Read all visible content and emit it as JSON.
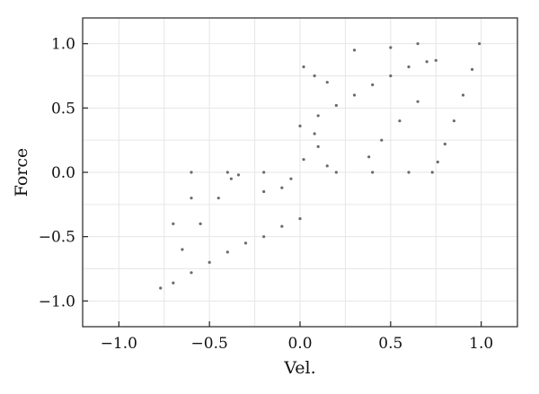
{
  "chart_data": {
    "type": "scatter",
    "title": "",
    "xlabel": "Vel.",
    "ylabel": "Force",
    "xlim": [
      -1.2,
      1.2
    ],
    "ylim": [
      -1.2,
      1.2
    ],
    "xticks": [
      -1.0,
      -0.5,
      0.0,
      0.5,
      1.0
    ],
    "yticks": [
      -1.0,
      -0.5,
      0.0,
      0.5,
      1.0
    ],
    "xtick_labels": [
      "−1.0",
      "−0.5",
      "0.0",
      "0.5",
      "1.0"
    ],
    "ytick_labels": [
      "−1.0",
      "−0.5",
      "0.0",
      "0.5",
      "1.0"
    ],
    "grid": true,
    "legend": "none",
    "marker_color": "#6b6b6b",
    "series": [
      {
        "values": [
          [
            -0.77,
            -0.9
          ],
          [
            -0.7,
            -0.86
          ],
          [
            -0.6,
            -0.78
          ],
          [
            -0.5,
            -0.7
          ],
          [
            -0.4,
            -0.62
          ],
          [
            -0.3,
            -0.55
          ],
          [
            -0.2,
            -0.5
          ],
          [
            -0.1,
            -0.42
          ],
          [
            0.0,
            -0.36
          ],
          [
            0.0,
            0.36
          ],
          [
            0.1,
            0.44
          ],
          [
            0.2,
            0.52
          ],
          [
            0.3,
            0.6
          ],
          [
            0.4,
            0.68
          ],
          [
            0.5,
            0.75
          ],
          [
            0.6,
            0.82
          ],
          [
            0.7,
            0.86
          ],
          [
            0.75,
            0.87
          ],
          [
            -0.6,
            0.0
          ],
          [
            -0.4,
            0.0
          ],
          [
            -0.2,
            0.0
          ],
          [
            0.2,
            0.0
          ],
          [
            0.4,
            0.0
          ],
          [
            0.6,
            0.0
          ],
          [
            0.73,
            0.0
          ],
          [
            0.99,
            1.0
          ],
          [
            0.95,
            0.8
          ],
          [
            0.9,
            0.6
          ],
          [
            0.85,
            0.4
          ],
          [
            0.8,
            0.22
          ],
          [
            0.76,
            0.08
          ],
          [
            0.65,
            0.55
          ],
          [
            0.55,
            0.4
          ],
          [
            0.45,
            0.25
          ],
          [
            0.38,
            0.12
          ],
          [
            -0.65,
            -0.6
          ],
          [
            -0.55,
            -0.4
          ],
          [
            -0.45,
            -0.2
          ],
          [
            -0.38,
            -0.05
          ],
          [
            -0.7,
            -0.4
          ],
          [
            -0.6,
            -0.2
          ],
          [
            -0.34,
            -0.02
          ],
          [
            0.02,
            0.1
          ],
          [
            0.1,
            0.2
          ],
          [
            0.15,
            0.05
          ],
          [
            0.08,
            0.3
          ],
          [
            -0.1,
            -0.12
          ],
          [
            -0.2,
            -0.15
          ],
          [
            -0.05,
            -0.05
          ],
          [
            0.3,
            0.95
          ],
          [
            0.5,
            0.97
          ],
          [
            0.65,
            1.0
          ],
          [
            0.02,
            0.82
          ],
          [
            0.08,
            0.75
          ],
          [
            0.15,
            0.7
          ]
        ]
      }
    ]
  }
}
